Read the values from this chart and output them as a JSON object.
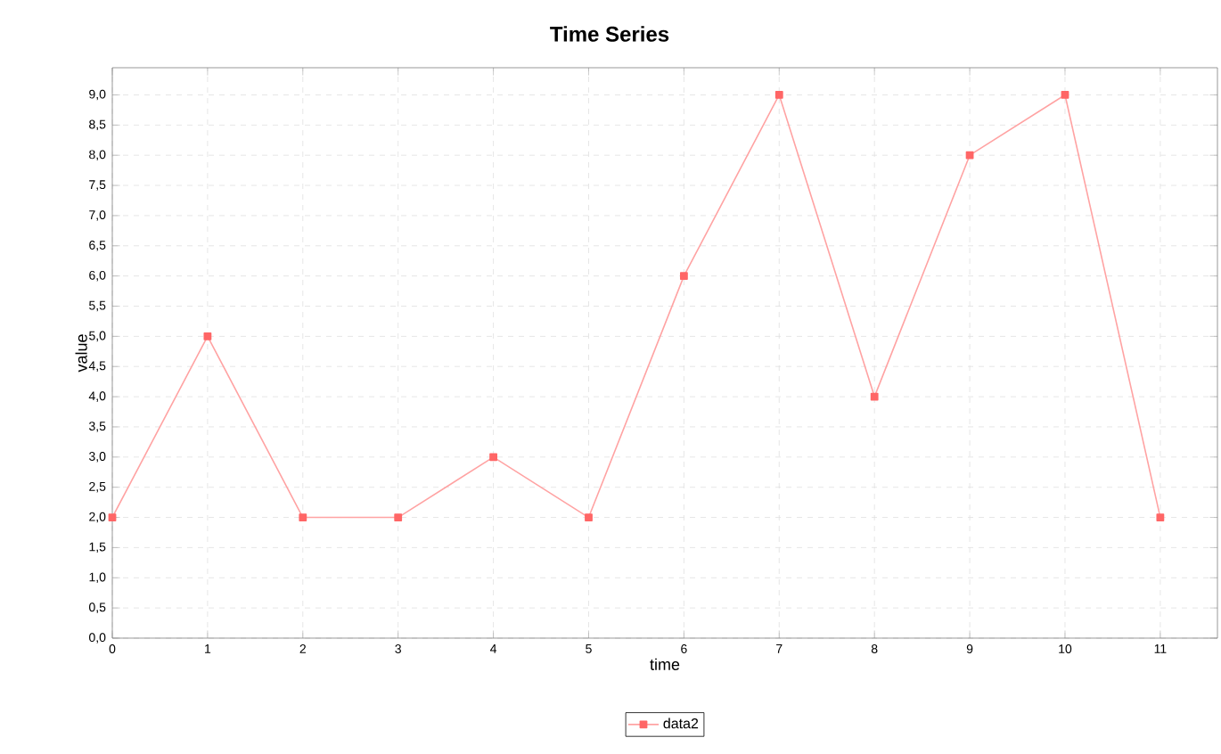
{
  "chart_data": {
    "type": "line",
    "title": "Time Series",
    "xlabel": "time",
    "ylabel": "value",
    "x": [
      0,
      1,
      2,
      3,
      4,
      5,
      6,
      7,
      8,
      9,
      10,
      11
    ],
    "series": [
      {
        "name": "data2",
        "color": "#ff6666",
        "values": [
          2,
          5,
          2,
          2,
          3,
          2,
          6,
          9,
          4,
          8,
          9,
          2
        ]
      }
    ],
    "xlim": [
      0,
      11.6
    ],
    "ylim": [
      0,
      9.45
    ],
    "xticks": [
      0,
      1,
      2,
      3,
      4,
      5,
      6,
      7,
      8,
      9,
      10,
      11
    ],
    "yticks": [
      {
        "value": 0,
        "label": "0,0"
      },
      {
        "value": 0.5,
        "label": "0,5"
      },
      {
        "value": 1,
        "label": "1,0"
      },
      {
        "value": 1.5,
        "label": "1,5"
      },
      {
        "value": 2,
        "label": "2,0"
      },
      {
        "value": 2.5,
        "label": "2,5"
      },
      {
        "value": 3,
        "label": "3,0"
      },
      {
        "value": 3.5,
        "label": "3,5"
      },
      {
        "value": 4,
        "label": "4,0"
      },
      {
        "value": 4.5,
        "label": "4,5"
      },
      {
        "value": 5,
        "label": "5,0"
      },
      {
        "value": 5.5,
        "label": "5,5"
      },
      {
        "value": 6,
        "label": "6,0"
      },
      {
        "value": 6.5,
        "label": "6,5"
      },
      {
        "value": 7,
        "label": "7,0"
      },
      {
        "value": 7.5,
        "label": "7,5"
      },
      {
        "value": 8,
        "label": "8,0"
      },
      {
        "value": 8.5,
        "label": "8,5"
      },
      {
        "value": 9,
        "label": "9,0"
      }
    ],
    "grid": true,
    "legend": "bottom",
    "marker": "square",
    "line_style": "solid"
  }
}
